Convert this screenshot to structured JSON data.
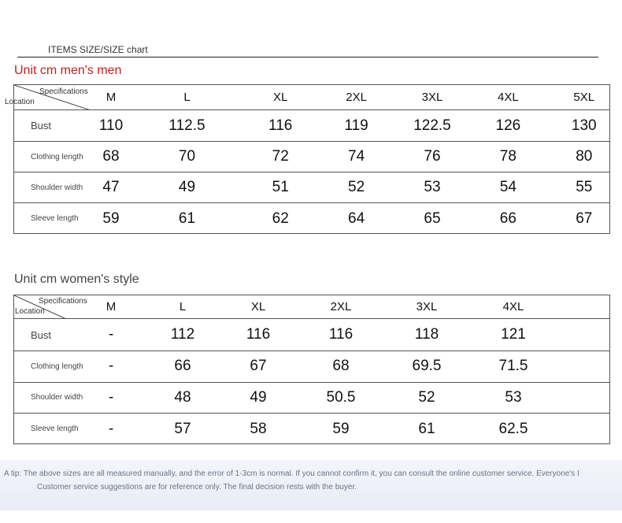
{
  "chart_title": "ITEMS SIZE/SIZE chart",
  "corner": {
    "spec": "Specifications",
    "loc": "Location"
  },
  "men": {
    "title": "Unit cm men's men",
    "sizes": [
      "M",
      "L",
      "XL",
      "2XL",
      "3XL",
      "4XL",
      "5XL"
    ],
    "rows": [
      {
        "label": "Bust",
        "values": [
          "110",
          "112.5",
          "116",
          "119",
          "122.5",
          "126",
          "130"
        ]
      },
      {
        "label": "Clothing length",
        "values": [
          "68",
          "70",
          "72",
          "74",
          "76",
          "78",
          "80"
        ]
      },
      {
        "label": "Shoulder width",
        "values": [
          "47",
          "49",
          "51",
          "52",
          "53",
          "54",
          "55"
        ]
      },
      {
        "label": "Sleeve length",
        "values": [
          "59",
          "61",
          "62",
          "64",
          "65",
          "66",
          "67"
        ]
      }
    ]
  },
  "women": {
    "title": "Unit cm women's style",
    "sizes": [
      "M",
      "L",
      "XL",
      "2XL",
      "3XL",
      "4XL"
    ],
    "rows": [
      {
        "label": "Bust",
        "values": [
          "-",
          "112",
          "116",
          "116",
          "118",
          "121"
        ]
      },
      {
        "label": "Clothing length",
        "values": [
          "-",
          "66",
          "67",
          "68",
          "69.5",
          "71.5"
        ]
      },
      {
        "label": "Shoulder width",
        "values": [
          "-",
          "48",
          "49",
          "50.5",
          "52",
          "53"
        ]
      },
      {
        "label": "Sleeve length",
        "values": [
          "-",
          "57",
          "58",
          "59",
          "61",
          "62.5"
        ]
      }
    ]
  },
  "tip": {
    "line1": "A tip: The above sizes are all measured manually, and the error of 1-3cm is normal. If you cannot confirm it, you can consult the online customer service. Everyone's I",
    "line2": "Customer service suggestions are for reference only. The final decision rests with the buyer."
  }
}
